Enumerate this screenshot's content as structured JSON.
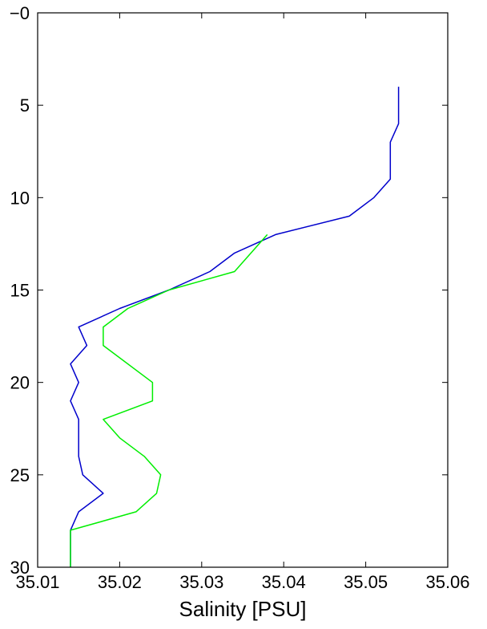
{
  "chart_data": {
    "type": "line",
    "title": "",
    "xlabel": "Salinity [PSU]",
    "ylabel": "",
    "xlim": [
      35.01,
      35.06
    ],
    "ylim": [
      0,
      30
    ],
    "y_reversed": true,
    "grid": false,
    "x_ticks": [
      {
        "value": 35.01,
        "label": "35.01"
      },
      {
        "value": 35.02,
        "label": "35.02"
      },
      {
        "value": 35.03,
        "label": "35.03"
      },
      {
        "value": 35.04,
        "label": "35.04"
      },
      {
        "value": 35.05,
        "label": "35.05"
      },
      {
        "value": 35.06,
        "label": "35.06"
      }
    ],
    "y_ticks": [
      {
        "value": 0,
        "label": "−0"
      },
      {
        "value": 5,
        "label": "5"
      },
      {
        "value": 10,
        "label": "10"
      },
      {
        "value": 15,
        "label": "15"
      },
      {
        "value": 20,
        "label": "20"
      },
      {
        "value": 25,
        "label": "25"
      },
      {
        "value": 30,
        "label": "30"
      }
    ],
    "series": [
      {
        "color": "#0000cc",
        "points": [
          [
            35.054,
            4
          ],
          [
            35.054,
            6
          ],
          [
            35.053,
            7
          ],
          [
            35.053,
            9
          ],
          [
            35.051,
            10
          ],
          [
            35.048,
            11
          ],
          [
            35.039,
            12
          ],
          [
            35.034,
            13
          ],
          [
            35.031,
            14
          ],
          [
            35.026,
            15
          ],
          [
            35.02,
            16
          ],
          [
            35.015,
            17
          ],
          [
            35.016,
            18
          ],
          [
            35.014,
            19
          ],
          [
            35.015,
            20
          ],
          [
            35.014,
            21
          ],
          [
            35.015,
            22
          ],
          [
            35.015,
            23
          ],
          [
            35.015,
            24
          ],
          [
            35.0155,
            25
          ],
          [
            35.018,
            26
          ],
          [
            35.015,
            27
          ],
          [
            35.014,
            28
          ],
          [
            35.014,
            30
          ]
        ]
      },
      {
        "color": "#00ee00",
        "points": [
          [
            35.038,
            12
          ],
          [
            35.034,
            14
          ],
          [
            35.026,
            15
          ],
          [
            35.021,
            16
          ],
          [
            35.018,
            17
          ],
          [
            35.018,
            18
          ],
          [
            35.024,
            20
          ],
          [
            35.024,
            21
          ],
          [
            35.018,
            22
          ],
          [
            35.02,
            23
          ],
          [
            35.023,
            24
          ],
          [
            35.025,
            25
          ],
          [
            35.0245,
            26
          ],
          [
            35.022,
            27
          ],
          [
            35.014,
            28
          ],
          [
            35.014,
            30
          ]
        ]
      }
    ]
  }
}
